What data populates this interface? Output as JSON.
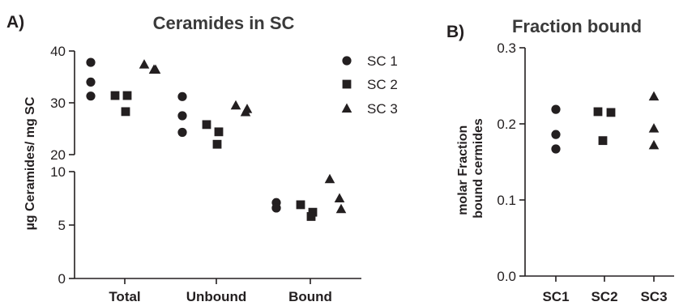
{
  "chart_data": [
    {
      "panel": "A)",
      "type": "scatter",
      "title": "Ceramides in SC",
      "ylabel": "µg Ceramides/ mg SC",
      "broken_axis": true,
      "ylim_lower": [
        0,
        10
      ],
      "ylim_upper": [
        20,
        40
      ],
      "yticks_lower": [
        "0",
        "5",
        "10"
      ],
      "yticks_upper": [
        "20",
        "30",
        "40"
      ],
      "categories": [
        "Total",
        "Unbound",
        "Bound"
      ],
      "legend_position": "top-right",
      "series": [
        {
          "name": "SC 1",
          "marker": "circle",
          "values": [
            [
              37.8,
              34.0,
              31.3
            ],
            [
              31.2,
              27.5,
              24.3
            ],
            [
              7.1,
              6.6,
              6.6
            ]
          ]
        },
        {
          "name": "SC 2",
          "marker": "square",
          "values": [
            [
              31.4,
              31.4,
              28.3
            ],
            [
              25.8,
              24.4,
              22.0
            ],
            [
              6.9,
              6.2,
              5.8
            ]
          ]
        },
        {
          "name": "SC 3",
          "marker": "triangle",
          "values": [
            [
              37.4,
              36.4,
              36.4
            ],
            [
              29.5,
              28.2,
              28.8
            ],
            [
              9.3,
              7.5,
              6.5
            ]
          ]
        }
      ]
    },
    {
      "panel": "B)",
      "type": "scatter",
      "title": "Fraction bound",
      "ylabel": [
        "molar Fraction",
        "bound cermides"
      ],
      "ylim": [
        0,
        0.3
      ],
      "yticks": [
        "0.0",
        "0.1",
        "0.2",
        "0.3"
      ],
      "categories": [
        "SC1",
        "SC2",
        "SC3"
      ],
      "series": [
        {
          "name": "SC1",
          "marker": "circle",
          "values": [
            0.219,
            0.186,
            0.167
          ]
        },
        {
          "name": "SC2",
          "marker": "square",
          "values": [
            0.216,
            0.215,
            0.178
          ]
        },
        {
          "name": "SC3",
          "marker": "triangle",
          "values": [
            0.236,
            0.194,
            0.172
          ]
        }
      ]
    }
  ]
}
